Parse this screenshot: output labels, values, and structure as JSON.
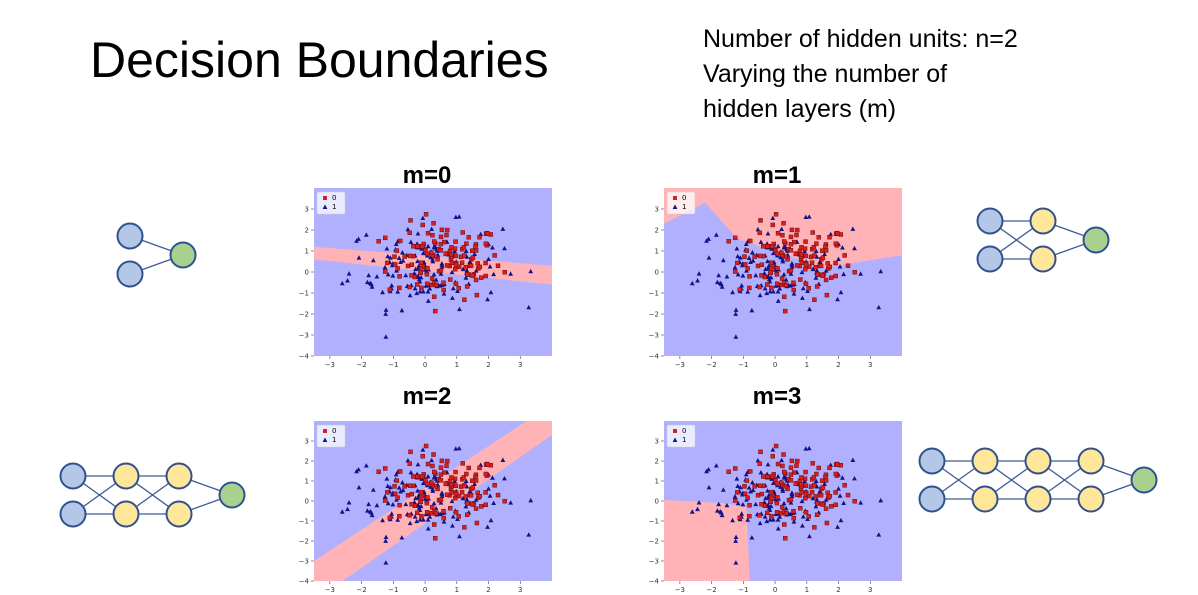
{
  "title": "Decision Boundaries",
  "subtitle": {
    "lines": [
      "Number of hidden units: n=2",
      "Varying the number of",
      "hidden layers (m)"
    ]
  },
  "legend_labels": [
    "0",
    "1"
  ],
  "colors": {
    "region_0": "#ffb3b6",
    "region_1": "#b0b0ff",
    "class_0_marker": "#d42020",
    "class_1_marker": "#131388",
    "input_node": "#b4c7e7",
    "hidden_node": "#ffe699",
    "output_node": "#a9d18e",
    "node_stroke": "#2f528f"
  },
  "chart_data": [
    {
      "type": "scatter",
      "title": "m=0",
      "hidden_layers": 0,
      "xlim": [
        -3.5,
        4
      ],
      "ylim": [
        -4,
        4
      ],
      "xticks": [
        -3,
        -2,
        -1,
        0,
        1,
        2,
        3
      ],
      "yticks": [
        -4,
        -3,
        -2,
        -1,
        0,
        1,
        2,
        3
      ],
      "legend": {
        "entries": [
          "0",
          "1"
        ],
        "placement": "top-left"
      },
      "class_0_region": [
        [
          -3.5,
          1.2
        ],
        [
          4,
          0.3
        ],
        [
          4,
          -0.6
        ],
        [
          -3.5,
          0.6
        ]
      ],
      "boundary": "linear, red above"
    },
    {
      "type": "scatter",
      "title": "m=1",
      "hidden_layers": 1,
      "xlim": [
        -3.5,
        4
      ],
      "ylim": [
        -4,
        4
      ],
      "xticks": [
        -3,
        -2,
        -1,
        0,
        1,
        2,
        3
      ],
      "yticks": [
        -4,
        -3,
        -2,
        -1,
        0,
        1,
        2,
        3
      ],
      "legend": {
        "entries": [
          "0",
          "1"
        ],
        "placement": "top-left"
      },
      "boundary": "piecewise linear, red upper-right"
    },
    {
      "type": "scatter",
      "title": "m=2",
      "hidden_layers": 2,
      "xlim": [
        -3.5,
        4
      ],
      "ylim": [
        -4,
        4
      ],
      "xticks": [
        -3,
        -2,
        -1,
        0,
        1,
        2,
        3
      ],
      "yticks": [
        -4,
        -3,
        -2,
        -1,
        0,
        1,
        2,
        3
      ],
      "legend": {
        "entries": [
          "0",
          "1"
        ],
        "placement": "top-left"
      },
      "boundary": "diagonal red band"
    },
    {
      "type": "scatter",
      "title": "m=3",
      "hidden_layers": 3,
      "xlim": [
        -3.5,
        4
      ],
      "ylim": [
        -4,
        4
      ],
      "xticks": [
        -3,
        -2,
        -1,
        0,
        1,
        2,
        3
      ],
      "yticks": [
        -4,
        -3,
        -2,
        -1,
        0,
        1,
        2,
        3
      ],
      "legend": {
        "entries": [
          "0",
          "1"
        ],
        "placement": "top-left"
      },
      "boundary": "red lower-left region"
    }
  ],
  "networks": [
    {
      "hidden_layers": 0,
      "layers": [
        2,
        1
      ]
    },
    {
      "hidden_layers": 1,
      "layers": [
        2,
        2,
        1
      ]
    },
    {
      "hidden_layers": 2,
      "layers": [
        2,
        2,
        2,
        1
      ]
    },
    {
      "hidden_layers": 3,
      "layers": [
        2,
        2,
        2,
        2,
        1
      ]
    }
  ]
}
